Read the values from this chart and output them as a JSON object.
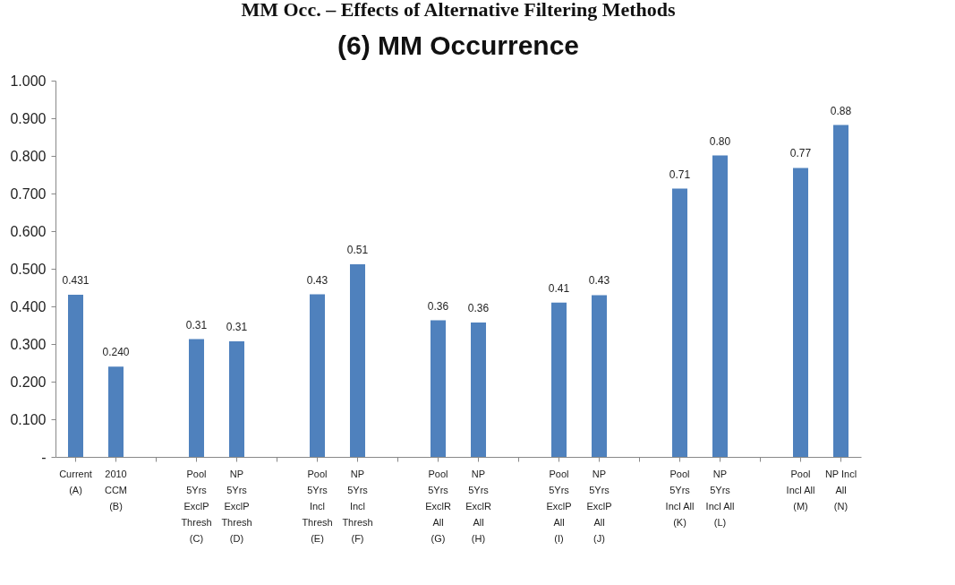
{
  "chart_data": {
    "type": "bar",
    "title": "MM Occ. – Effects of Alternative Filtering Methods",
    "subtitle": "(6) MM Occurrence",
    "categories": [
      "Current\n(A)",
      "2010\nCCM\n(B)",
      null,
      "Pool\n5Yrs\nExclP\nThresh\n(C)",
      "NP\n5Yrs\nExclP\nThresh\n(D)",
      null,
      "Pool\n5Yrs\nIncl\nThresh\n(E)",
      "NP\n5Yrs\nIncl\nThresh\n(F)",
      null,
      "Pool\n5Yrs\nExclR\nAll\n(G)",
      "NP\n5Yrs\nExclR\nAll\n(H)",
      null,
      "Pool\n5Yrs\nExclP\nAll\n(I)",
      "NP\n5Yrs\nExclP\nAll\n(J)",
      null,
      "Pool\n5Yrs\nIncl All\n\n(K)",
      "NP\n5Yrs\nIncl All\n\n(L)",
      null,
      "Pool\nIncl All\n\n\n(M)",
      "NP Incl\nAll\n\n\n(N)"
    ],
    "values": [
      0.431,
      0.24,
      null,
      0.313,
      0.307,
      null,
      0.432,
      0.512,
      null,
      0.363,
      0.357,
      null,
      0.41,
      0.43,
      null,
      0.713,
      0.801,
      null,
      0.768,
      0.882
    ],
    "value_labels": [
      "0.431",
      "0.240",
      null,
      "0.31",
      "0.31",
      null,
      "0.43",
      "0.51",
      null,
      "0.36",
      "0.36",
      null,
      "0.41",
      "0.43",
      null,
      "0.71",
      "0.80",
      null,
      "0.77",
      "0.88"
    ],
    "color": "#4f81bd",
    "ylim": [
      0,
      1
    ],
    "yticks": [
      {
        "value": 0,
        "label": "-"
      },
      {
        "value": 0.1,
        "label": "0.100"
      },
      {
        "value": 0.2,
        "label": "0.200"
      },
      {
        "value": 0.3,
        "label": "0.300"
      },
      {
        "value": 0.4,
        "label": "0.400"
      },
      {
        "value": 0.5,
        "label": "0.500"
      },
      {
        "value": 0.6,
        "label": "0.600"
      },
      {
        "value": 0.7,
        "label": "0.700"
      },
      {
        "value": 0.8,
        "label": "0.800"
      },
      {
        "value": 0.9,
        "label": "0.900"
      },
      {
        "value": 1,
        "label": "1.000"
      }
    ],
    "grid": false
  }
}
